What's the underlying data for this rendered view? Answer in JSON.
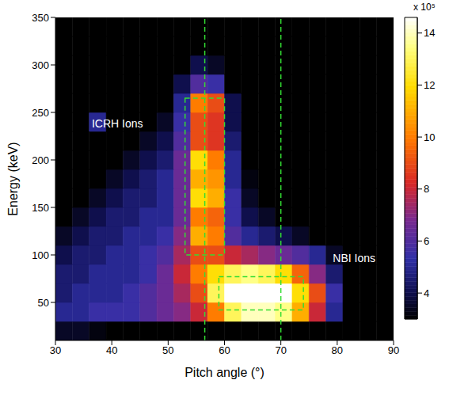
{
  "chart_data": {
    "type": "heatmap",
    "xlabel": "Pitch angle (°)",
    "ylabel": "Energy (keV)",
    "xlim": [
      30,
      90
    ],
    "xticks": [
      30,
      40,
      50,
      60,
      70,
      80,
      90
    ],
    "ylim": [
      10,
      350
    ],
    "yticks": [
      50,
      100,
      150,
      200,
      250,
      300,
      350
    ],
    "heatmap": {
      "x_edges": [
        30,
        33,
        36,
        39,
        42,
        45,
        48,
        51,
        54,
        57,
        60,
        63,
        66,
        69,
        72,
        75,
        78,
        81,
        84,
        87,
        90
      ],
      "y_edges": [
        10,
        30,
        50,
        70,
        90,
        110,
        130,
        150,
        170,
        190,
        210,
        230,
        250,
        270,
        290,
        310,
        330,
        350
      ],
      "values": [
        [
          3.5,
          3.5,
          3.2,
          3,
          3,
          3,
          3,
          3,
          3,
          3,
          3,
          3,
          3,
          3,
          2.8,
          2.6,
          2.5,
          2.5,
          2.5,
          2.5
        ],
        [
          5,
          5,
          5.5,
          5.5,
          5.5,
          6,
          6.5,
          7,
          8,
          10,
          13,
          14,
          14,
          13.5,
          11,
          8,
          5,
          3,
          2.6,
          2.5
        ],
        [
          4.5,
          5,
          5,
          5,
          5.5,
          6,
          6.5,
          7.5,
          9,
          13,
          15,
          15,
          15,
          15,
          12,
          9,
          5.5,
          3,
          2.6,
          2.5
        ],
        [
          4.5,
          4.5,
          5,
          5,
          5,
          5.5,
          6.5,
          8,
          10,
          12,
          13,
          13.5,
          13,
          12,
          9.5,
          7,
          4.5,
          3,
          2.5,
          2.5
        ],
        [
          4,
          4.5,
          4.5,
          5,
          5,
          5.5,
          6,
          7.5,
          9,
          9,
          8,
          7.5,
          7,
          6.5,
          6,
          5,
          3.5,
          2.7,
          2.5,
          2.5
        ],
        [
          3.5,
          4,
          4.5,
          4.5,
          5,
          5,
          5.5,
          7,
          11,
          10,
          6,
          5,
          4.5,
          4,
          3.5,
          3,
          2.6,
          2.5,
          2.5,
          2.5
        ],
        [
          3,
          3.5,
          4,
          4.5,
          4.5,
          5,
          5,
          6.5,
          10,
          9.5,
          5.5,
          4,
          3.5,
          3,
          2.7,
          2.5,
          2.5,
          2.5,
          2.5,
          2.5
        ],
        [
          2.8,
          3,
          3.5,
          4,
          4.5,
          4.5,
          5,
          6.5,
          12,
          11,
          5.5,
          3.5,
          3,
          2.7,
          2.5,
          2.5,
          2.5,
          2.5,
          2.5,
          2.5
        ],
        [
          2.6,
          2.8,
          3,
          3.5,
          4,
          4.5,
          5,
          6.5,
          11,
          10.5,
          5,
          3.2,
          2.8,
          2.6,
          2.5,
          2.5,
          2.5,
          2.5,
          2.5,
          2.5
        ],
        [
          2.5,
          2.6,
          2.8,
          3,
          3.5,
          4,
          4.5,
          6.5,
          12,
          10,
          5,
          3,
          2.7,
          2.5,
          2.5,
          2.5,
          2.5,
          2.5,
          2.5,
          2.5
        ],
        [
          2.5,
          2.5,
          2.7,
          2.8,
          3,
          3.5,
          4,
          6,
          9,
          8.5,
          4.5,
          2.8,
          2.5,
          2.5,
          2.5,
          2.5,
          2.5,
          2.5,
          2.5,
          2.5
        ],
        [
          2.5,
          2.5,
          5,
          3,
          2.8,
          3,
          3.5,
          5.5,
          9,
          8.5,
          4,
          2.7,
          2.5,
          2.5,
          2.5,
          2.5,
          2.5,
          2.5,
          2.5,
          2.5
        ],
        [
          2.5,
          2.5,
          2.5,
          2.5,
          2.6,
          2.7,
          3,
          5,
          10,
          9,
          4,
          2.6,
          2.5,
          2.5,
          2.5,
          2.5,
          2.5,
          2.5,
          2.5,
          2.5
        ],
        [
          2.5,
          2.5,
          2.5,
          2.5,
          2.5,
          2.5,
          2.7,
          4,
          6,
          5.5,
          3,
          2.5,
          2.5,
          2.5,
          2.5,
          2.5,
          2.5,
          2.5,
          2.5,
          2.5
        ],
        [
          2.5,
          2.5,
          2.5,
          2.5,
          2.5,
          2.5,
          2.5,
          3,
          4,
          3.5,
          2.7,
          2.5,
          2.5,
          2.5,
          2.5,
          2.5,
          2.5,
          2.5,
          2.5,
          2.5
        ],
        [
          2.5,
          2.5,
          2.5,
          2.5,
          2.5,
          2.5,
          2.5,
          2.7,
          3,
          3,
          2.6,
          2.5,
          2.5,
          2.5,
          2.5,
          2.5,
          2.5,
          2.5,
          2.5,
          2.5
        ],
        [
          2.5,
          2.5,
          2.5,
          2.5,
          2.5,
          2.5,
          2.5,
          2.5,
          2.5,
          2.5,
          2.5,
          2.5,
          2.5,
          2.5,
          2.5,
          2.5,
          2.5,
          2.5,
          2.5,
          2.5
        ]
      ]
    },
    "colorbar": {
      "range": [
        3,
        14.6
      ],
      "ticks": [
        4,
        6,
        8,
        10,
        12,
        14
      ],
      "label": "x 10⁵"
    },
    "vlines": [
      56.5,
      70
    ],
    "boxes": [
      {
        "x": [
          53,
          60
        ],
        "y": [
          100,
          265
        ]
      },
      {
        "x": [
          59,
          74
        ],
        "y": [
          42,
          77
        ]
      }
    ],
    "annotations": [
      {
        "text": "ICRH Ions",
        "x": 41,
        "y": 238
      },
      {
        "text": "NBI Ions",
        "x": 83,
        "y": 97
      }
    ]
  }
}
